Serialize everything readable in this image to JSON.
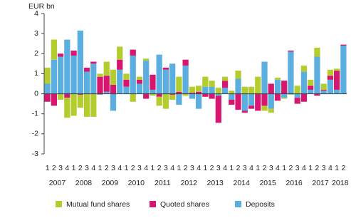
{
  "chart_data": {
    "type": "bar",
    "stacked": true,
    "y_label": "EUR bn",
    "categories": [
      "1",
      "2",
      "3",
      "4",
      "1",
      "2",
      "3",
      "4",
      "1",
      "2",
      "3",
      "4",
      "1",
      "2",
      "3",
      "4",
      "1",
      "2",
      "3",
      "4",
      "1",
      "2",
      "3",
      "4",
      "1",
      "2",
      "3",
      "4",
      "1",
      "2",
      "3",
      "4",
      "1",
      "2",
      "3",
      "4",
      "1",
      "2",
      "3",
      "4",
      "1",
      "2",
      "3",
      "4",
      "1",
      "2"
    ],
    "years": [
      "2007",
      "2008",
      "2009",
      "2010",
      "2011",
      "2012",
      "2013",
      "2014",
      "2015",
      "2016",
      "2017",
      "2018"
    ],
    "series": [
      {
        "name": "Mutual fund shares",
        "color": "#b5cc2f",
        "values": [
          0.8,
          1.0,
          -0.3,
          -1.0,
          -1.1,
          -0.65,
          -1.15,
          -1.15,
          0.15,
          0.7,
          0.75,
          0.65,
          0.3,
          -0.4,
          0.15,
          0.1,
          -0.1,
          -0.45,
          -0.75,
          -0.25,
          0.75,
          -0.1,
          0.3,
          0.3,
          0.5,
          0.3,
          0.3,
          0.2,
          0.15,
          0.4,
          0.35,
          0.35,
          0.85,
          -0.25,
          -0.2,
          0.1,
          -0.05,
          -0.05,
          0.4,
          0.3,
          0.3,
          0.45,
          0.3,
          0.3,
          0.1,
          0.0
        ]
      },
      {
        "name": "Quoted shares",
        "color": "#d6166f",
        "values": [
          -0.4,
          -0.6,
          0.15,
          -0.2,
          0.25,
          -0.05,
          0.2,
          0.1,
          0.85,
          0.8,
          0.45,
          0.5,
          0.35,
          0.3,
          0.2,
          -0.25,
          0.75,
          -0.15,
          0.1,
          -0.05,
          0.1,
          0.3,
          0.05,
          0.1,
          -0.15,
          -0.25,
          -1.35,
          0.35,
          -0.25,
          -0.8,
          -0.1,
          -0.15,
          -0.85,
          -0.6,
          0.5,
          -0.35,
          0.65,
          0.05,
          -0.3,
          -0.4,
          0.2,
          -0.1,
          0.05,
          0.2,
          0.95,
          0.05
        ]
      },
      {
        "name": "Deposits",
        "color": "#5aaee0",
        "values": [
          0.5,
          1.7,
          1.85,
          2.7,
          1.9,
          3.15,
          1.1,
          1.5,
          -0.05,
          0.1,
          -0.85,
          1.2,
          0.35,
          1.9,
          0.5,
          1.65,
          0.2,
          1.95,
          1.2,
          1.5,
          -0.55,
          1.4,
          -0.25,
          -0.75,
          0.35,
          0.35,
          -0.1,
          0.3,
          -0.3,
          0.75,
          -0.85,
          -0.6,
          0.0,
          1.6,
          -0.75,
          0.7,
          -0.2,
          2.1,
          -0.2,
          1.1,
          0.2,
          1.85,
          0.15,
          0.7,
          0.2,
          2.4
        ]
      }
    ],
    "ylim": [
      -3,
      4
    ],
    "yticks": [
      -3,
      -2,
      -1,
      0,
      1,
      2,
      3,
      4
    ],
    "grid": false,
    "legend": "bottom"
  }
}
